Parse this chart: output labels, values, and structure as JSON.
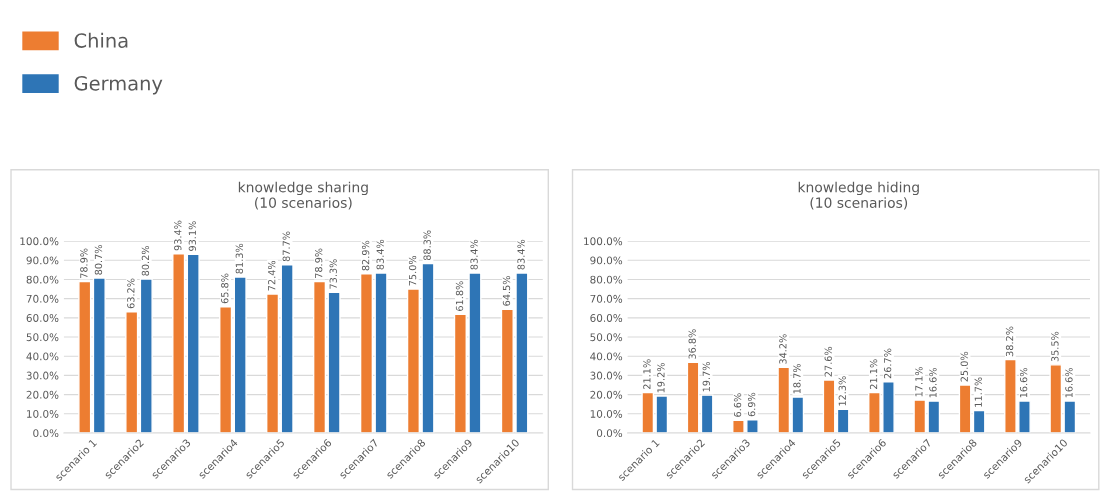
{
  "chart_data": [
    {
      "type": "bar",
      "title": "knowledge sharing\n(10 scenarios)",
      "categories": [
        "scenario 1",
        "scenario2",
        "scenario3",
        "scenario4",
        "scenario5",
        "scenario6",
        "scenario7",
        "scenario8",
        "scenario9",
        "scenario10"
      ],
      "series": [
        {
          "name": "China",
          "color": "#ed7d31",
          "values": [
            78.9,
            63.2,
            93.4,
            65.8,
            72.4,
            78.9,
            82.9,
            75.0,
            61.8,
            64.5
          ],
          "value_labels": [
            "78.9%",
            "63.2%",
            "93.4%",
            "65.8%",
            "72.4%",
            "78.9%",
            "82.9%",
            "75.0%",
            "61.8%",
            "64.5%"
          ]
        },
        {
          "name": "Germany",
          "color": "#2e75b6",
          "values": [
            80.7,
            80.2,
            93.1,
            81.3,
            87.7,
            73.3,
            83.4,
            88.3,
            83.4,
            83.4
          ],
          "value_labels": [
            "80.7%",
            "80.2%",
            "93.1%",
            "81.3%",
            "87.7%",
            "73.3%",
            "83.4%",
            "88.3%",
            "83.4%",
            "83.4%"
          ]
        }
      ],
      "ylim": [
        0,
        100
      ],
      "yticks": [
        {
          "value": 0,
          "label": "0.0%"
        },
        {
          "value": 10,
          "label": "10.0%"
        },
        {
          "value": 20,
          "label": "20.0%"
        },
        {
          "value": 30,
          "label": "30.0%"
        },
        {
          "value": 40,
          "label": "40.0%"
        },
        {
          "value": 50,
          "label": "50.0%"
        },
        {
          "value": 60,
          "label": "60.0%"
        },
        {
          "value": 70,
          "label": "70.0%"
        },
        {
          "value": 80,
          "label": "80.0%"
        },
        {
          "value": 90,
          "label": "90.0%"
        },
        {
          "value": 100,
          "label": "100.0%"
        }
      ],
      "grid": "y",
      "legend": "top left"
    },
    {
      "type": "bar",
      "title": "knowledge hiding\n(10 scenarios)",
      "categories": [
        "scenario 1",
        "scenario2",
        "scenario3",
        "scenario4",
        "scenario5",
        "scenario6",
        "scenario7",
        "scenario8",
        "scenario9",
        "scenario10"
      ],
      "series": [
        {
          "color": "#ed7d31",
          "values": [
            21.1,
            36.8,
            6.6,
            34.2,
            27.6,
            21.1,
            17.1,
            25.0,
            38.2,
            35.5
          ],
          "value_labels": [
            "21.1%",
            "36.8%",
            "6.6%",
            "34.2%",
            "27.6%",
            "21.1%",
            "17.1%",
            "25.0%",
            "38.2%",
            "35.5%"
          ]
        },
        {
          "color": "#2e75b6",
          "values": [
            19.2,
            19.7,
            6.9,
            18.7,
            12.3,
            26.7,
            16.6,
            11.7,
            16.6,
            16.6
          ],
          "value_labels": [
            "19.2%",
            "19.7%",
            "6.9%",
            "18.7%",
            "12.3%",
            "26.7%",
            "16.6%",
            "11.7%",
            "16.6%",
            "16.6%"
          ]
        }
      ],
      "ylim": [
        0,
        100
      ],
      "yticks": [
        {
          "value": 0,
          "label": "0.0%"
        },
        {
          "value": 10,
          "label": "10.0%"
        },
        {
          "value": 20,
          "label": "20.0%"
        },
        {
          "value": 30,
          "label": "30.0%"
        },
        {
          "value": 40,
          "label": "40.0%"
        },
        {
          "value": 50,
          "label": "50.0%"
        },
        {
          "value": 60,
          "label": "60.0%"
        },
        {
          "value": 70,
          "label": "70.0%"
        },
        {
          "value": 80,
          "label": "80.0%"
        },
        {
          "value": 90,
          "label": "90.0%"
        },
        {
          "value": 100,
          "label": "100.0%"
        }
      ],
      "grid": "y"
    }
  ]
}
